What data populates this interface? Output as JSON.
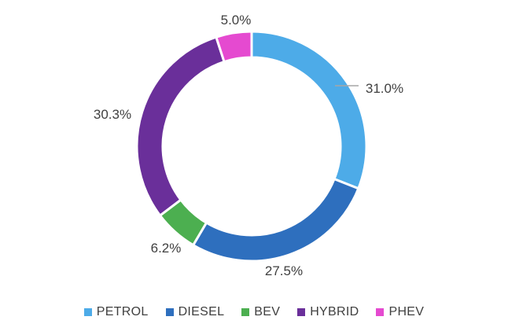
{
  "chart_data": {
    "type": "pie",
    "subtype": "donut",
    "categories": [
      "PETROL",
      "DIESEL",
      "BEV",
      "HYBRID",
      "PHEV"
    ],
    "values": [
      31.0,
      27.5,
      6.2,
      30.3,
      5.0
    ],
    "labels": [
      "31.0%",
      "27.5%",
      "6.2%",
      "30.3%",
      "5.0%"
    ],
    "colors": [
      "#4dabe8",
      "#2e6fbe",
      "#4caf50",
      "#6a2f9a",
      "#e54ad0"
    ],
    "legend_position": "bottom"
  }
}
